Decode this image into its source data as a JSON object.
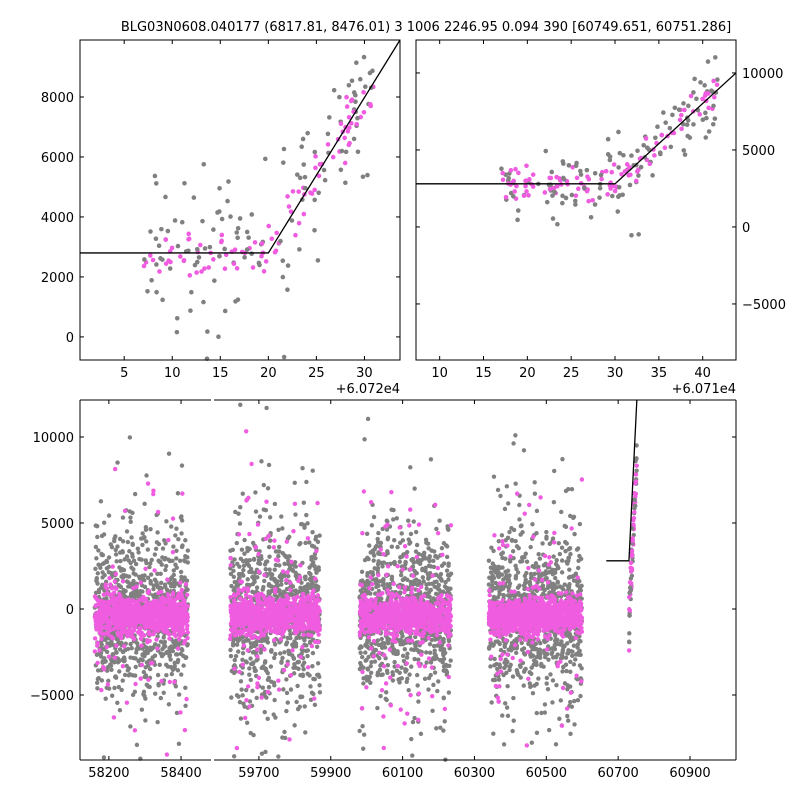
{
  "title": "BLG03N0608.040177 (6817.81, 8476.01)   3 1006 2246.95 0.094 390 [60749.651, 60751.286]",
  "colors": {
    "gray": "#808080",
    "magenta": "#f05ce0",
    "line": "#000000"
  },
  "chart_data": [
    {
      "type": "scatter",
      "panel": "top-left",
      "offset_label": "+6.072e4",
      "xlim": [
        0.4,
        33.7
      ],
      "ylim": [
        -770,
        9900
      ],
      "xticks": [
        5,
        10,
        15,
        20,
        25,
        30
      ],
      "yticks": [
        0,
        2000,
        4000,
        6000,
        8000
      ],
      "ytick_labels": [
        "0",
        "2000",
        "4000",
        "6000",
        "8000"
      ],
      "model_line": [
        [
          0.4,
          2800
        ],
        [
          20,
          2800
        ],
        [
          33.7,
          9900
        ]
      ],
      "scatter_summary": {
        "x_range": [
          7,
          31
        ],
        "baseline": 2800,
        "rise_start": 20,
        "slope_per_unit": 520
      }
    },
    {
      "type": "scatter",
      "panel": "top-right",
      "offset_label": "+6.071e4",
      "xlim": [
        7.3,
        43.8
      ],
      "ylim": [
        -8640,
        12140
      ],
      "xticks": [
        10,
        15,
        20,
        25,
        30,
        35,
        40
      ],
      "yticks": [
        -5000,
        0,
        5000,
        10000
      ],
      "ytick_labels": [
        "−5000",
        "0",
        "5000",
        "10000"
      ],
      "model_line": [
        [
          7.3,
          2800
        ],
        [
          30,
          2800
        ],
        [
          43.8,
          10000
        ]
      ],
      "scatter_summary": {
        "x_range": [
          17,
          42
        ],
        "baseline": 2800,
        "rise_start": 30,
        "slope_per_unit": 520
      }
    },
    {
      "type": "scatter",
      "panel": "bottom-broken-axis",
      "ylim": [
        -8780,
        12150
      ],
      "yticks": [
        -5000,
        0,
        5000,
        10000
      ],
      "ytick_labels": [
        "−5000",
        "0",
        "5000",
        "10000"
      ],
      "segments": [
        {
          "xlim": [
            58120,
            58483
          ],
          "xticks": [
            58200,
            58400
          ]
        },
        {
          "xlim": [
            59575,
            61028
          ],
          "xticks": [
            59700,
            59900,
            60100,
            60300,
            60500,
            60700,
            60900
          ]
        }
      ],
      "seasons": [
        {
          "x_range": [
            58161,
            58419
          ]
        },
        {
          "x_range": [
            59620,
            59870
          ]
        },
        {
          "x_range": [
            59980,
            60235
          ]
        },
        {
          "x_range": [
            60340,
            60600
          ]
        }
      ],
      "event": {
        "x_range": [
          60730,
          60752
        ],
        "peak": 11500
      },
      "model_line": [
        [
          60667,
          2800
        ],
        [
          60730,
          2800
        ],
        [
          60752,
          12150
        ]
      ]
    }
  ]
}
